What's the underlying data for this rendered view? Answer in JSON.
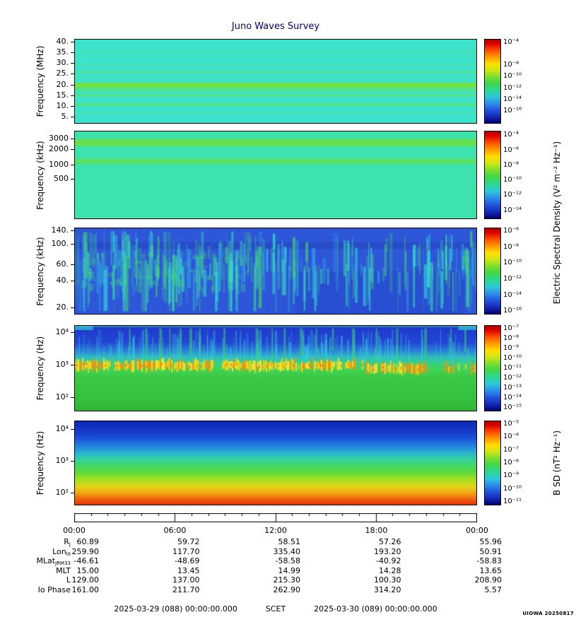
{
  "title": "Juno Waves Survey",
  "credit": "UIOWA 20250817",
  "footer": {
    "start": "2025-03-29 (088) 00:00:00.000",
    "scet": "SCET",
    "end": "2025-03-30 (089) 00:00:00.000"
  },
  "right_labels": {
    "electric": "Electric Spectral Density (V² m⁻² Hz⁻¹)",
    "magnetic": "B SD (nT² Hz⁻¹)"
  },
  "time_axis": {
    "ticks": [
      "00:00",
      "06:00",
      "12:00",
      "18:00",
      "00:00"
    ],
    "hours": 24,
    "major_every": 6
  },
  "colorbar_gradient": [
    [
      0,
      "#af0000"
    ],
    [
      0.05,
      "#dd0000"
    ],
    [
      0.13,
      "#ff4f00"
    ],
    [
      0.21,
      "#ff9c00"
    ],
    [
      0.29,
      "#ffdf00"
    ],
    [
      0.37,
      "#cde718"
    ],
    [
      0.45,
      "#79dd31"
    ],
    [
      0.53,
      "#3dd64e"
    ],
    [
      0.61,
      "#2fd79a"
    ],
    [
      0.69,
      "#2dc6da"
    ],
    [
      0.77,
      "#2f8ae8"
    ],
    [
      0.85,
      "#2151dc"
    ],
    [
      0.93,
      "#1527b2"
    ],
    [
      1,
      "#00006e"
    ]
  ],
  "chart_data": [
    {
      "type": "heatmap",
      "title": "Juno Waves Survey - HF electric spectrogram",
      "ylabel": "Frequency (MHz)",
      "yscale": "linear",
      "yrange_mhz": [
        2,
        41
      ],
      "xrange": [
        "2025-03-29 00:00",
        "2025-03-30 00:00"
      ],
      "yticks": [
        {
          "t": "40.",
          "f": 0.03
        },
        {
          "t": "35.",
          "f": 0.157
        },
        {
          "t": "30.",
          "f": 0.284
        },
        {
          "t": "25.",
          "f": 0.41
        },
        {
          "t": "20.",
          "f": 0.538
        },
        {
          "t": "15.",
          "f": 0.665
        },
        {
          "t": "10.",
          "f": 0.792
        },
        {
          "t": "5.",
          "f": 0.92
        }
      ],
      "colorbar_ticks": [
        {
          "t": "10⁻⁴",
          "f": 0.04
        },
        {
          "t": "10⁻⁸",
          "f": 0.31
        },
        {
          "t": "10⁻¹⁰",
          "f": 0.445
        },
        {
          "t": "10⁻¹²",
          "f": 0.58
        },
        {
          "t": "10⁻¹⁴",
          "f": 0.715
        },
        {
          "t": "10⁻¹⁶",
          "f": 0.85
        }
      ],
      "render": {
        "kind": "bands",
        "background": "#3ce2cb",
        "bands": [
          {
            "y": 0.115,
            "h": 0.045,
            "c": "#4fe2a8",
            "a": 0.55
          },
          {
            "y": 0.19,
            "h": 0.03,
            "c": "#4fe2a8",
            "a": 0.35
          },
          {
            "y": 0.285,
            "h": 0.035,
            "c": "#54e392",
            "a": 0.5
          },
          {
            "y": 0.365,
            "h": 0.05,
            "c": "#57e387",
            "a": 0.65
          },
          {
            "y": 0.445,
            "h": 0.03,
            "c": "#50e19e",
            "a": 0.4
          },
          {
            "y": 0.505,
            "h": 0.085,
            "c": "#79e13c",
            "a": 1
          },
          {
            "y": 0.585,
            "h": 0.04,
            "c": "#64e25f",
            "a": 0.75
          },
          {
            "y": 0.645,
            "h": 0.045,
            "c": "#5be272",
            "a": 0.8
          },
          {
            "y": 0.75,
            "h": 0.055,
            "c": "#5be272",
            "a": 0.75
          },
          {
            "y": 0.86,
            "h": 0.04,
            "c": "#52e29a",
            "a": 0.45
          }
        ]
      }
    },
    {
      "type": "heatmap",
      "title": "Juno Waves Survey - HFR high band electric spectrogram",
      "ylabel": "Frequency (kHz)",
      "yscale": "nonlinear",
      "yrange_khz": [
        140,
        3200
      ],
      "yticks": [
        {
          "t": "3000",
          "f": 0.09
        },
        {
          "t": "2000",
          "f": 0.21
        },
        {
          "t": "1000",
          "f": 0.38
        },
        {
          "t": "500",
          "f": 0.54
        }
      ],
      "colorbar_ticks": [
        {
          "t": "10⁻⁴",
          "f": 0.05
        },
        {
          "t": "10⁻⁶",
          "f": 0.22
        },
        {
          "t": "10⁻⁸",
          "f": 0.39
        },
        {
          "t": "10⁻¹⁰",
          "f": 0.56
        },
        {
          "t": "10⁻¹²",
          "f": 0.73
        },
        {
          "t": "10⁻¹⁴",
          "f": 0.9
        }
      ],
      "render": {
        "kind": "bands",
        "background": "#3de2ae",
        "bands": [
          {
            "y": 0.07,
            "h": 0.115,
            "c": "#68e04c",
            "a": 1
          },
          {
            "y": 0.3,
            "h": 0.09,
            "c": "#5fe158",
            "a": 0.85
          }
        ]
      }
    },
    {
      "type": "heatmap",
      "title": "Juno Waves Survey - HFR low band electric spectrogram",
      "ylabel": "Frequency (kHz)",
      "yscale": "log",
      "yrange_khz": [
        17,
        150
      ],
      "yticks": [
        {
          "t": "140.",
          "f": 0.03
        },
        {
          "t": "100.",
          "f": 0.19
        },
        {
          "t": "60.",
          "f": 0.42
        },
        {
          "t": "40.",
          "f": 0.61
        },
        {
          "t": "20.",
          "f": 0.92
        }
      ],
      "colorbar_ticks": [
        {
          "t": "10⁻⁶",
          "f": 0.04
        },
        {
          "t": "10⁻⁸",
          "f": 0.225
        },
        {
          "t": "10⁻¹⁰",
          "f": 0.41
        },
        {
          "t": "10⁻¹²",
          "f": 0.595
        },
        {
          "t": "10⁻¹⁴",
          "f": 0.78
        },
        {
          "t": "10⁻¹⁶",
          "f": 0.96
        }
      ],
      "render": {
        "kind": "streaks",
        "background": "#2d57d8",
        "seed": 12345,
        "darkband": {
          "y": 0.16,
          "h": 0.08,
          "c": "#2443bd",
          "a": 0.55
        },
        "shade": {
          "x": 0.55,
          "w": 0.42,
          "y": 0.5,
          "h": 0.5,
          "c": "#1f3fc4",
          "a": 0.3
        },
        "palette": [
          "#37e3da",
          "#3ce4a4",
          "#49df62",
          "#35b9ec"
        ],
        "count": 420,
        "zones": [
          [
            0,
            0.45,
            0.88
          ],
          [
            0.45,
            0.6,
            0.5
          ],
          [
            0.6,
            0.85,
            0.38
          ],
          [
            0.85,
            1.01,
            0.8
          ]
        ]
      }
    },
    {
      "type": "heatmap",
      "title": "Juno Waves Survey - LFR electric spectrogram",
      "ylabel": "Frequency (Hz)",
      "yscale": "log",
      "yrange_hz": [
        50,
        20000
      ],
      "yticks": [
        {
          "t": "10⁴",
          "f": 0.08
        },
        {
          "t": "10³",
          "f": 0.46
        },
        {
          "t": "10²",
          "f": 0.84
        }
      ],
      "colorbar_ticks": [
        {
          "t": "10⁻⁷",
          "f": 0.04
        },
        {
          "t": "10⁻⁸",
          "f": 0.155
        },
        {
          "t": "10⁻⁹",
          "f": 0.27
        },
        {
          "t": "10⁻¹⁰",
          "f": 0.385
        },
        {
          "t": "10⁻¹¹",
          "f": 0.5
        },
        {
          "t": "10⁻¹²",
          "f": 0.615
        },
        {
          "t": "10⁻¹³",
          "f": 0.73
        },
        {
          "t": "10⁻¹⁴",
          "f": 0.845
        },
        {
          "t": "10⁻¹⁵",
          "f": 0.96
        }
      ],
      "render": {
        "kind": "emag",
        "seed": 777,
        "base": [
          [
            0,
            "#1f38cc"
          ],
          [
            0.2,
            "#2347d4"
          ],
          [
            0.3,
            "#2b83d8"
          ],
          [
            0.37,
            "#31bdbd"
          ],
          [
            0.44,
            "#38d186"
          ],
          [
            0.52,
            "#40d355"
          ],
          [
            0.62,
            "#3bc843"
          ],
          [
            0.85,
            "#36c13e"
          ],
          [
            1,
            "#2fb737"
          ]
        ],
        "streakColor": "#38cfe0",
        "spikes": [
          0.135,
          0.175,
          0.21,
          0.235,
          0.26,
          0.285,
          0.31,
          0.37,
          0.45,
          0.49,
          0.52,
          0.56,
          0.6,
          0.64,
          0.69,
          0.75,
          0.8,
          0.87,
          0.935,
          0.97
        ],
        "band": {
          "center": 0.465,
          "centerRight": 0.5,
          "rightFrom": 0.72,
          "colors": [
            "#f6930f",
            "#ffd60d",
            "#f8ea3d"
          ],
          "gaps": [
            [
              0.345,
              0.365
            ],
            [
              0.7,
              0.725
            ]
          ],
          "sparse": [
            [
              0.88,
              0.99,
              0.35
            ]
          ]
        }
      }
    },
    {
      "type": "heatmap",
      "title": "Juno Waves Survey - magnetic spectrogram",
      "ylabel": "Frequency (Hz)",
      "yscale": "log",
      "yrange_hz": [
        50,
        20000
      ],
      "yticks": [
        {
          "t": "10⁴",
          "f": 0.1
        },
        {
          "t": "10³",
          "f": 0.475
        },
        {
          "t": "10²",
          "f": 0.85
        }
      ],
      "colorbar_ticks": [
        {
          "t": "10⁻⁵",
          "f": 0.04
        },
        {
          "t": "10⁻⁶",
          "f": 0.193
        },
        {
          "t": "10⁻⁷",
          "f": 0.347
        },
        {
          "t": "10⁻⁸",
          "f": 0.5
        },
        {
          "t": "10⁻⁹",
          "f": 0.653
        },
        {
          "t": "10⁻¹⁰",
          "f": 0.807
        },
        {
          "t": "10⁻¹¹",
          "f": 0.96
        }
      ],
      "render": {
        "kind": "gradient",
        "stops": [
          [
            0,
            "#0e2ab2"
          ],
          [
            0.1,
            "#1537c6"
          ],
          [
            0.2,
            "#1b4fd8"
          ],
          [
            0.3,
            "#2382de"
          ],
          [
            0.38,
            "#2cb4d2"
          ],
          [
            0.46,
            "#36d3a0"
          ],
          [
            0.54,
            "#44d95f"
          ],
          [
            0.62,
            "#63da3a"
          ],
          [
            0.7,
            "#a5de24"
          ],
          [
            0.78,
            "#e0d619"
          ],
          [
            0.86,
            "#f2a513"
          ],
          [
            0.93,
            "#ee660e"
          ],
          [
            1,
            "#e23408"
          ]
        ]
      }
    }
  ],
  "ephemeris": {
    "rows": [
      {
        "label": "R",
        "sub": "J",
        "values": [
          "60.89",
          "59.72",
          "58.51",
          "57.26",
          "55.96"
        ]
      },
      {
        "label": "Lon",
        "sub": "III",
        "values": [
          "259.90",
          "117.70",
          "335.40",
          "193.20",
          "50.91"
        ]
      },
      {
        "label": "MLat",
        "sub": "JRM33",
        "values": [
          "-46.61",
          "-48.69",
          "-58.58",
          "-40.92",
          "-58.83"
        ]
      },
      {
        "label": "MLT",
        "sub": "",
        "values": [
          "15.00",
          "13.45",
          "14.99",
          "14.28",
          "13.65"
        ]
      },
      {
        "label": "L",
        "sub": "",
        "values": [
          "129.00",
          "137.00",
          "215.30",
          "100.30",
          "208.90"
        ]
      },
      {
        "label": "Io Phase",
        "sub": "",
        "values": [
          "161.00",
          "211.70",
          "262.90",
          "314.20",
          "5.57"
        ]
      }
    ]
  }
}
